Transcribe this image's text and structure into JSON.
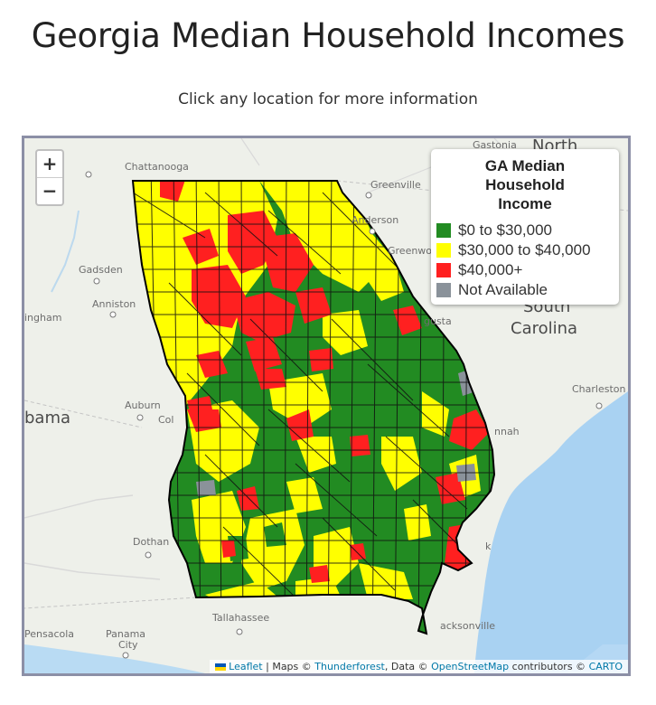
{
  "page": {
    "title": "Georgia Median Household Incomes",
    "subtitle": "Click any location for more information"
  },
  "zoom": {
    "in_label": "+",
    "out_label": "−"
  },
  "legend": {
    "title_lines": [
      "GA Median",
      "Household",
      "Income"
    ],
    "items": [
      {
        "label": "$0 to $30,000",
        "color": "#228b22"
      },
      {
        "label": "$30,000 to $40,000",
        "color": "#ffff00"
      },
      {
        "label": "$40,000+",
        "color": "#ff2020"
      },
      {
        "label": "Not Available",
        "color": "#8a929a"
      }
    ]
  },
  "places": {
    "gastonia": "Gastonia",
    "north": "North",
    "chattanooga": "Chattanooga",
    "greenville": "Greenville",
    "anderson": "Anderson",
    "greenwood": "Greenwo",
    "gadsden": "Gadsden",
    "anniston": "Anniston",
    "birmingham": "ingham",
    "south": "South",
    "carolina": "Carolina",
    "augusta": "gusta",
    "charleston": "Charleston",
    "alabama": "bama",
    "auburn": "Auburn",
    "columbus": "Col",
    "savannah": "nnah",
    "dothan": "Dothan",
    "tallahassee": "Tallahassee",
    "pensacola": "Pensacola",
    "panama_city": "Panama",
    "city": "City",
    "jacksonville": "acksonville",
    "k": "k"
  },
  "attribution": {
    "leaflet": "Leaflet",
    "sep1": " | Maps © ",
    "thunderforest": "Thunderforest",
    "sep2": ", Data © ",
    "osm": "OpenStreetMap",
    "sep3": " contributors © ",
    "carto": "CARTO"
  }
}
